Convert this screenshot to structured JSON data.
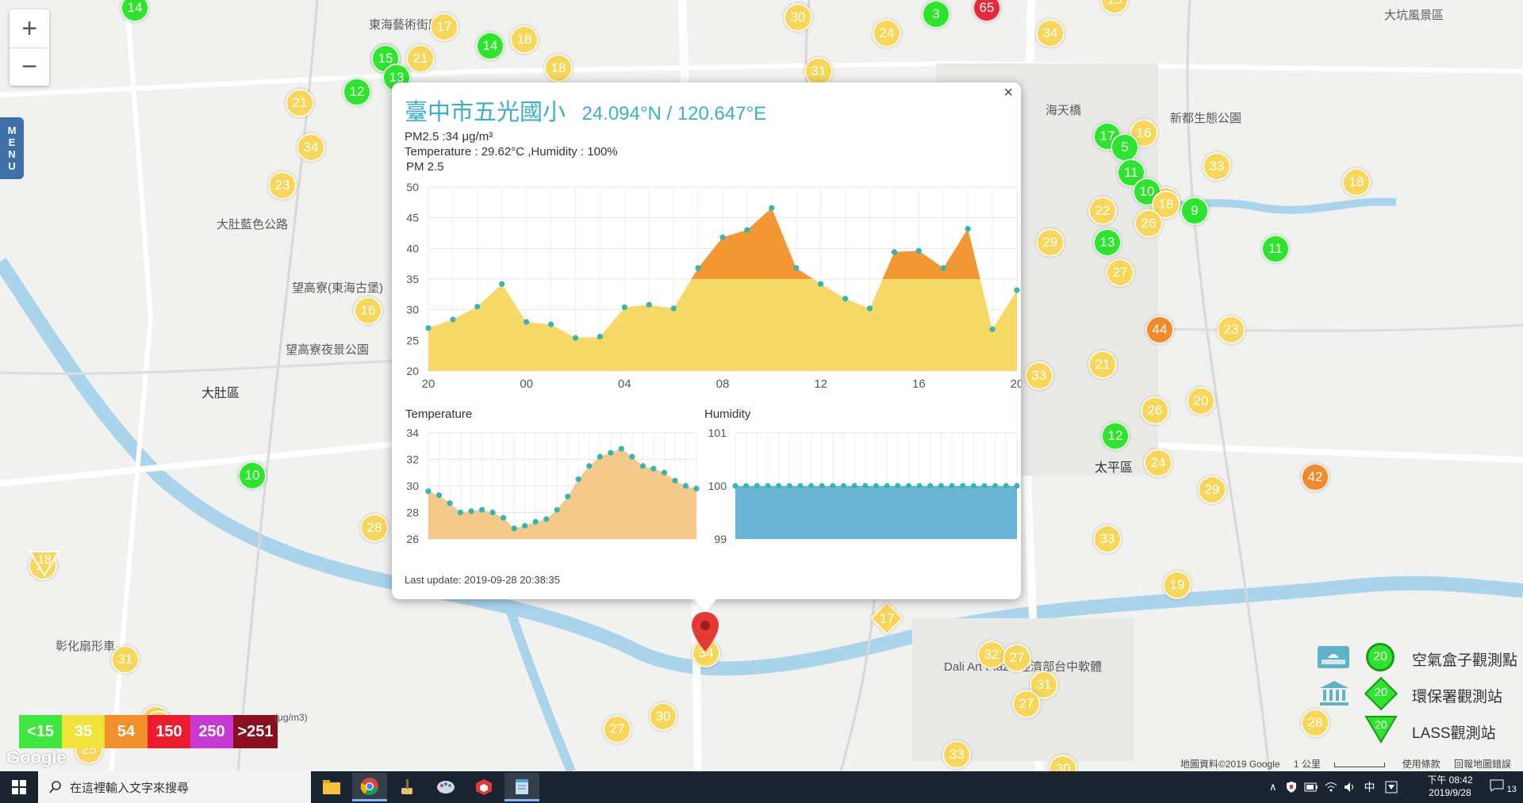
{
  "map": {
    "controls": {
      "zoom_in": "+",
      "zoom_out": "−",
      "menu": [
        "M",
        "E",
        "N",
        "U"
      ]
    },
    "labels": [
      {
        "text": "東海藝術街廊"
      },
      {
        "text": "大肚藍色公路"
      },
      {
        "text": "望高寮(東海古堡)"
      },
      {
        "text": "望高寮夜景公園"
      },
      {
        "text": "大肚區"
      },
      {
        "text": "太平區"
      },
      {
        "text": "新都生態公園"
      },
      {
        "text": "大坑風景區"
      },
      {
        "text": "海天橋"
      },
      {
        "text": "彰化扇形車"
      },
      {
        "text": "Dali Art Plaza 經濟部台中軟體"
      }
    ],
    "markers": [
      {
        "v": "14",
        "c": "green"
      },
      {
        "v": "17",
        "c": "yellow"
      },
      {
        "v": "14",
        "c": "green"
      },
      {
        "v": "18",
        "c": "yellow"
      },
      {
        "v": "15",
        "c": "green"
      },
      {
        "v": "30",
        "c": "yellow"
      },
      {
        "v": "3",
        "c": "green"
      },
      {
        "v": "65",
        "c": "red"
      },
      {
        "v": "15",
        "c": "yellow"
      },
      {
        "v": "18",
        "c": "yellow"
      },
      {
        "v": "21",
        "c": "yellow"
      },
      {
        "v": "15",
        "c": "green"
      },
      {
        "v": "13",
        "c": "green"
      },
      {
        "v": "12",
        "c": "green"
      },
      {
        "v": "21",
        "c": "yellow"
      },
      {
        "v": "24",
        "c": "yellow"
      },
      {
        "v": "34",
        "c": "yellow"
      },
      {
        "v": "31",
        "c": "yellow"
      },
      {
        "v": "34",
        "c": "yellow"
      },
      {
        "v": "23",
        "c": "yellow"
      },
      {
        "v": "17",
        "c": "green"
      },
      {
        "v": "16",
        "c": "yellow"
      },
      {
        "v": "5",
        "c": "green"
      },
      {
        "v": "33",
        "c": "yellow"
      },
      {
        "v": "11",
        "c": "green"
      },
      {
        "v": "18",
        "c": "yellow"
      },
      {
        "v": "10",
        "c": "green"
      },
      {
        "v": "22",
        "c": "yellow"
      },
      {
        "v": "18",
        "c": "yellow"
      },
      {
        "v": "9",
        "c": "green"
      },
      {
        "v": "26",
        "c": "yellow"
      },
      {
        "v": "29",
        "c": "yellow"
      },
      {
        "v": "13",
        "c": "green"
      },
      {
        "v": "11",
        "c": "green"
      },
      {
        "v": "18",
        "c": "yellow"
      },
      {
        "v": "27",
        "c": "yellow"
      },
      {
        "v": "16",
        "c": "yellow"
      },
      {
        "v": "44",
        "c": "orange"
      },
      {
        "v": "23",
        "c": "yellow"
      },
      {
        "v": "21",
        "c": "yellow"
      },
      {
        "v": "33",
        "c": "yellow"
      },
      {
        "v": "20",
        "c": "yellow"
      },
      {
        "v": "26",
        "c": "yellow"
      },
      {
        "v": "12",
        "c": "green"
      },
      {
        "v": "24",
        "c": "yellow"
      },
      {
        "v": "42",
        "c": "orange"
      },
      {
        "v": "10",
        "c": "green"
      },
      {
        "v": "29",
        "c": "yellow"
      },
      {
        "v": "28",
        "c": "yellow"
      },
      {
        "v": "33",
        "c": "yellow"
      },
      {
        "v": "19",
        "c": "yellow"
      },
      {
        "v": "31",
        "c": "yellow"
      },
      {
        "v": "32",
        "c": "yellow"
      },
      {
        "v": "27",
        "c": "yellow"
      },
      {
        "v": "31",
        "c": "yellow"
      },
      {
        "v": "27",
        "c": "yellow"
      },
      {
        "v": "30",
        "c": "yellow"
      },
      {
        "v": "27",
        "c": "yellow"
      },
      {
        "v": "34",
        "c": "yellow"
      },
      {
        "v": "33",
        "c": "yellow"
      },
      {
        "v": "28",
        "c": "yellow"
      },
      {
        "v": "18",
        "c": "yellow"
      },
      {
        "v": "25",
        "c": "yellow"
      },
      {
        "v": "18",
        "c": "yellow"
      },
      {
        "v": "19",
        "c": "yellow"
      },
      {
        "v": "30",
        "c": "yellow"
      }
    ],
    "diamond_marker": "17",
    "triangle_marker": "18",
    "colors": {
      "green": "#2ee52e",
      "yellow": "#f7d65a",
      "orange": "#f08a2a",
      "red": "#e8283c"
    }
  },
  "popup": {
    "close": "×",
    "station_name": "臺中市五光國小",
    "coordinates": "24.094°N / 120.647°E",
    "pm25_text": "PM2.5 :34 μg/m³",
    "temp_humidity_text": "Temperature : 29.62°C ,Humidity : 100%",
    "pm_chart_label": "PM 2.5",
    "temp_chart_label": "Temperature",
    "humidity_chart_label": "Humidity",
    "last_update": "Last update: 2019-09-28 20:38:35"
  },
  "chart_data": [
    {
      "type": "area",
      "title": "PM 2.5",
      "x_ticks": [
        "20",
        "00",
        "04",
        "08",
        "12",
        "16",
        "20"
      ],
      "ylim": [
        20,
        50
      ],
      "y_ticks": [
        20,
        25,
        30,
        35,
        40,
        45,
        50
      ],
      "values": [
        27,
        28.4,
        30.5,
        34.2,
        28,
        27.6,
        25.4,
        25.6,
        30.4,
        30.8,
        30.2,
        36.8,
        41.8,
        43,
        46.6,
        36.8,
        34.2,
        31.8,
        30.2,
        39.4,
        39.6,
        36.8,
        43.2,
        26.8,
        33.2
      ],
      "colors": {
        "fill_low": "#f7d968",
        "fill_high": "#f39634",
        "point": "#33b7b1"
      },
      "threshold": 35
    },
    {
      "type": "area",
      "title": "Temperature",
      "ylim": [
        26,
        34
      ],
      "y_ticks": [
        26,
        28,
        30,
        32,
        34
      ],
      "values": [
        29.6,
        29.3,
        28.7,
        28,
        28.1,
        28.2,
        28,
        27.6,
        26.8,
        27,
        27.3,
        27.5,
        28.2,
        29.2,
        30.5,
        31.5,
        32.2,
        32.5,
        32.8,
        32.2,
        31.5,
        31.3,
        31,
        30.4,
        30,
        29.8
      ],
      "colors": {
        "fill": "#f5c98a",
        "point": "#33b7b1"
      }
    },
    {
      "type": "area",
      "title": "Humidity",
      "ylim": [
        99,
        101
      ],
      "y_ticks": [
        99,
        100,
        101
      ],
      "values": [
        100,
        100,
        100,
        100,
        100,
        100,
        100,
        100,
        100,
        100,
        100,
        100,
        100,
        100,
        100,
        100,
        100,
        100,
        100,
        100,
        100,
        100,
        100,
        100,
        100,
        100,
        100
      ],
      "colors": {
        "fill": "#6ab5d6",
        "point": "#33b7b1"
      }
    }
  ],
  "legend": {
    "items": [
      {
        "label": "空氣盒子觀測點",
        "value": "20"
      },
      {
        "label": "環保署觀測站",
        "value": "20"
      },
      {
        "label": "LASS觀測站",
        "value": "20"
      }
    ],
    "pm_scale": [
      {
        "label": "<15",
        "color": "#3ee63e"
      },
      {
        "label": "35",
        "color": "#f2e33a"
      },
      {
        "label": "54",
        "color": "#f0902a"
      },
      {
        "label": "150",
        "color": "#ec1c2e"
      },
      {
        "label": "250",
        "color": "#c63ad3"
      },
      {
        "label": ">251",
        "color": "#8a1020"
      }
    ],
    "pm_unit": "(μg/m3)"
  },
  "footer": {
    "google": "Google",
    "map_data": "地圖資料©2019 Google",
    "scale": "1 公里",
    "terms": "使用條款",
    "report": "回報地圖錯誤"
  },
  "taskbar": {
    "search_placeholder": "在這裡輸入文字來搜尋",
    "time": "下午 08:42",
    "date": "2019/9/28",
    "ime": "中",
    "notifications": "13"
  }
}
